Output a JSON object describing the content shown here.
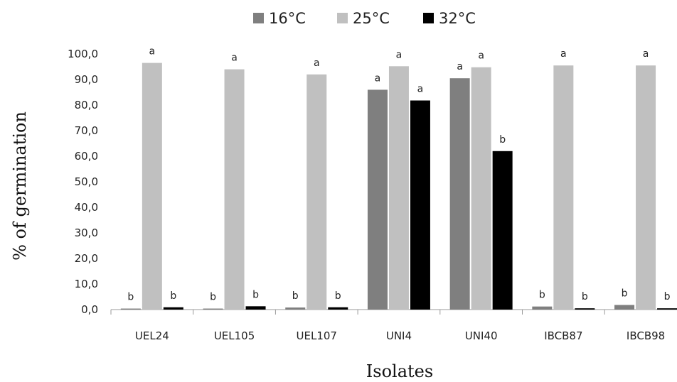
{
  "chart_data": {
    "type": "bar",
    "title": "",
    "xlabel": "Isolates",
    "ylabel": "% of germination",
    "categories": [
      "UEL24",
      "UEL105",
      "UEL107",
      "UNI4",
      "UNI40",
      "IBCB87",
      "IBCB98"
    ],
    "series": [
      {
        "name": "16°C",
        "color": "#7f7f7f",
        "values": [
          0.4,
          0.4,
          0.8,
          86.0,
          90.5,
          1.2,
          1.8
        ],
        "labels": [
          "b",
          "b",
          "b",
          "a",
          "a",
          "b",
          "b"
        ]
      },
      {
        "name": "25°C",
        "color": "#c0c0c0",
        "values": [
          96.5,
          94.0,
          92.0,
          95.2,
          94.8,
          95.5,
          95.5
        ],
        "labels": [
          "a",
          "a",
          "a",
          "a",
          "a",
          "a",
          "a"
        ]
      },
      {
        "name": "32°C",
        "color": "#000000",
        "values": [
          0.9,
          1.3,
          0.9,
          81.8,
          62.0,
          0.5,
          0.5
        ],
        "labels": [
          "b",
          "b",
          "b",
          "a",
          "b",
          "b",
          "b"
        ]
      }
    ],
    "ylim": [
      0,
      100
    ],
    "yticks": [
      "0,0",
      "10,0",
      "20,0",
      "30,0",
      "40,0",
      "50,0",
      "60,0",
      "70,0",
      "80,0",
      "90,0",
      "100,0"
    ],
    "grid": false,
    "legend_position": "top-center"
  }
}
